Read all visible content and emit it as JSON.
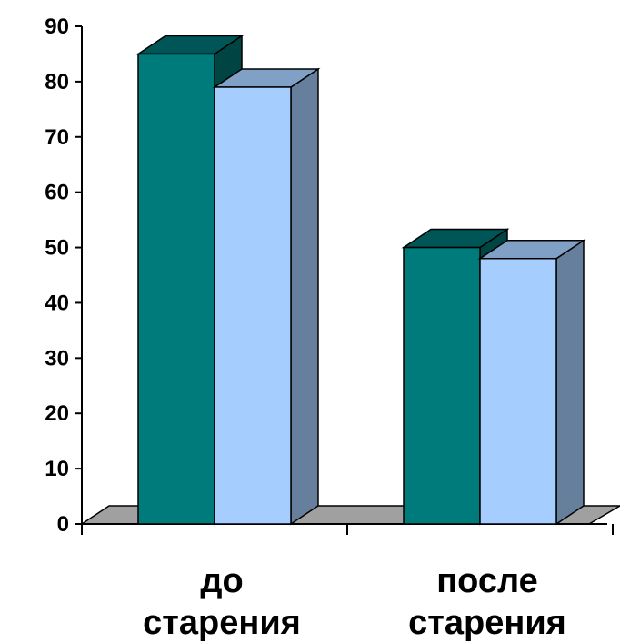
{
  "chart_data": {
    "type": "bar",
    "style": "3d-clustered-column",
    "categories": [
      "до старения",
      "после старения"
    ],
    "category_lines": [
      [
        "до",
        "старения"
      ],
      [
        "после",
        "старения"
      ]
    ],
    "series": [
      {
        "values": [
          85,
          50
        ],
        "color": "#007b7b"
      },
      {
        "values": [
          79,
          48
        ],
        "color": "#a5cdfd"
      }
    ],
    "ylim": [
      0,
      90
    ],
    "yticks": [
      0,
      10,
      20,
      30,
      40,
      50,
      60,
      70,
      80,
      90
    ],
    "grid": false,
    "legend": "none",
    "floor_color": "#a0a0a0"
  }
}
